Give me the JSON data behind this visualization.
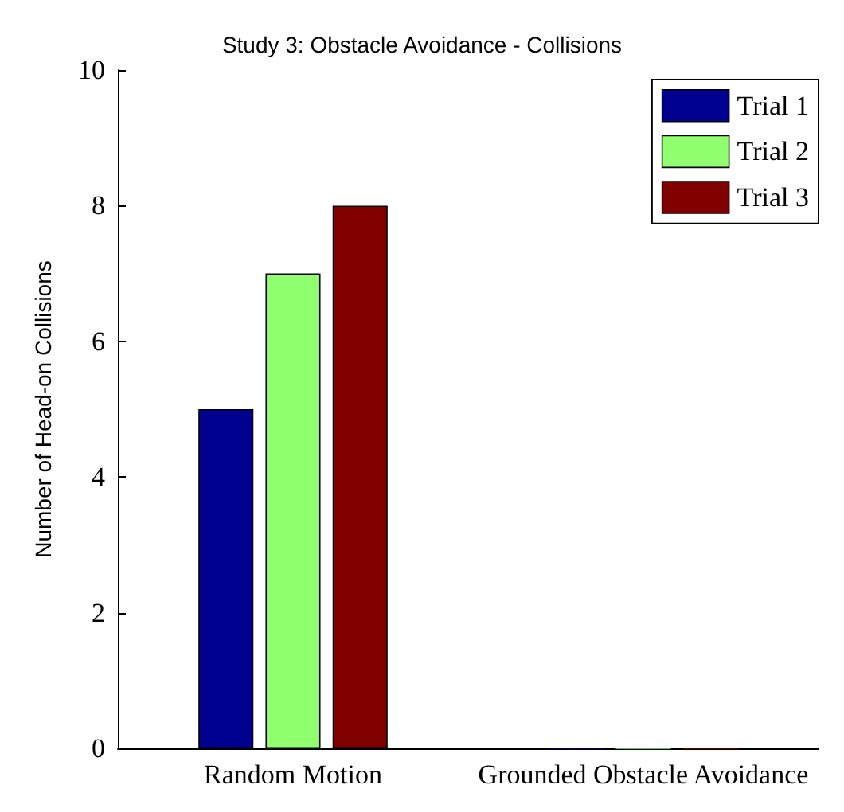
{
  "chart_data": {
    "type": "bar",
    "title": "Study 3: Obstacle Avoidance - Collisions",
    "ylabel": "Number of Head-on Collisions",
    "categories": [
      "Random Motion",
      "Grounded Obstacle Avoidance"
    ],
    "series": [
      {
        "name": "Trial 1",
        "color": "#000090",
        "values": [
          5,
          0
        ]
      },
      {
        "name": "Trial 2",
        "color": "#90ff70",
        "values": [
          7,
          0
        ]
      },
      {
        "name": "Trial 3",
        "color": "#800000",
        "values": [
          8,
          0
        ]
      }
    ],
    "ylim": [
      0,
      10
    ],
    "yticks": [
      0,
      2,
      4,
      6,
      8,
      10
    ],
    "grid": false,
    "legend": "top right"
  }
}
